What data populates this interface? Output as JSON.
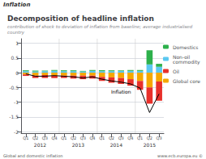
{
  "chart_data": {
    "type": "bar",
    "header": "Inflation",
    "title": "Decomposition of headline inflation",
    "subtitle": "contribution of shock to deviation of inflation from baseline; average industrialised country",
    "categories": [
      "Q1",
      "Q2",
      "Q3",
      "Q4",
      "Q1",
      "Q2",
      "Q3",
      "Q4",
      "Q1",
      "Q2",
      "Q3",
      "Q4",
      "Q1",
      "Q2",
      "Q3"
    ],
    "year_labels": [
      "2012",
      "2013",
      "2014",
      "2015"
    ],
    "stacked": true,
    "series": [
      {
        "name": "Global core",
        "color": "#f5a800",
        "values": [
          -0.06,
          -0.1,
          -0.08,
          -0.1,
          -0.1,
          -0.1,
          -0.1,
          -0.1,
          -0.14,
          -0.16,
          -0.18,
          -0.22,
          -0.28,
          -0.5,
          -0.3
        ]
      },
      {
        "name": "Oil",
        "color": "#e8302a",
        "values": [
          -0.05,
          -0.08,
          -0.1,
          -0.08,
          -0.08,
          -0.1,
          -0.12,
          -0.1,
          -0.14,
          -0.18,
          -0.2,
          -0.22,
          -0.3,
          -0.55,
          -0.65
        ]
      },
      {
        "name": "Non-oil\ncommodity",
        "color": "#5bc8f0",
        "values": [
          0.05,
          0.04,
          0.05,
          0.06,
          0.05,
          0.05,
          0.04,
          0.06,
          0.05,
          0.05,
          0.06,
          0.06,
          0.06,
          0.28,
          0.2
        ]
      },
      {
        "name": "Domestics",
        "color": "#2db04b",
        "values": [
          0.03,
          0.03,
          0.02,
          0.03,
          0.03,
          0.03,
          0.02,
          0.03,
          0.03,
          0.03,
          0.02,
          0.03,
          0.03,
          0.48,
          0.1
        ]
      },
      {
        "name": "Inflation",
        "type": "line",
        "color": "#000000",
        "values": [
          -0.04,
          -0.12,
          -0.12,
          -0.1,
          -0.12,
          -0.14,
          -0.18,
          -0.14,
          -0.22,
          -0.28,
          -0.32,
          -0.38,
          -0.52,
          -1.35,
          -0.72
        ]
      }
    ],
    "annotations": [
      {
        "text": "Inflation",
        "series": "Inflation",
        "index": 10
      }
    ],
    "ylim": [
      -2.05,
      1.15
    ],
    "yticks": [
      1,
      0.5,
      0,
      -0.5,
      -1,
      -1.5,
      -2
    ],
    "grid": true,
    "legend": "right",
    "notes": [
      "Global and domestic inflation",
      "www.ecb.europa.eu ©"
    ]
  }
}
